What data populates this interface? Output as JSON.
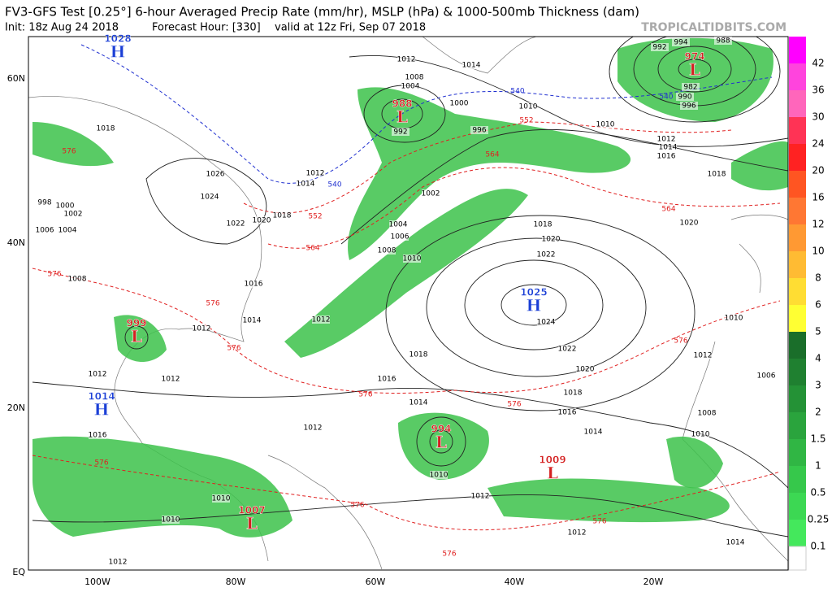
{
  "header": {
    "title": "FV3-GFS Test [0.25°] 6-hour Averaged Precip Rate (mm/hr), MSLP (hPa) & 1000-500mb Thickness (dam)",
    "init": "Init: 18z Aug 24 2018",
    "forecast_hour": "Forecast Hour: [330]",
    "valid": "valid at 12z Fri, Sep 07 2018",
    "site": "TROPICALTIDBITS.COM"
  },
  "map": {
    "lat_labels": [
      "60N",
      "40N",
      "20N",
      "EQ"
    ],
    "lon_labels": [
      "100W",
      "80W",
      "60W",
      "40W",
      "20W"
    ],
    "pressure_centers": [
      {
        "letter": "H",
        "value": 1028
      },
      {
        "letter": "L",
        "value": 988
      },
      {
        "letter": "L",
        "value": 974
      },
      {
        "letter": "H",
        "value": 1025
      },
      {
        "letter": "L",
        "value": 999
      },
      {
        "letter": "H",
        "value": 1014
      },
      {
        "letter": "L",
        "value": 994
      },
      {
        "letter": "L",
        "value": 1009
      },
      {
        "letter": "L",
        "value": 1007
      }
    ],
    "isobar_labels": [
      1012,
      1014,
      1008,
      1004,
      1000,
      996,
      992,
      1010,
      1010,
      1012,
      1014,
      1016,
      1018,
      1020,
      1018,
      1020,
      1022,
      1024,
      1022,
      1020,
      1018,
      1016,
      1014,
      1016,
      1014,
      1018,
      1012,
      1010,
      1008,
      1006,
      1004,
      1002,
      1026,
      1024,
      1022,
      1020,
      1018,
      1016,
      1014,
      1012,
      1012,
      1012,
      1010,
      1012,
      1012,
      1014,
      1012,
      1010,
      1010,
      1008,
      1006,
      1004,
      1002,
      1000,
      998,
      1018,
      1012,
      1014,
      1008,
      1010,
      1010,
      1012,
      1006,
      994,
      988,
      992,
      982,
      990,
      996,
      1012,
      1016
    ],
    "thickness_labels": [
      540,
      540,
      552,
      564,
      564,
      576,
      552,
      564,
      540,
      576,
      576,
      576,
      576,
      576,
      576,
      576,
      576,
      576,
      576
    ]
  },
  "colorbar": {
    "labels": [
      42,
      36,
      30,
      24,
      20,
      16,
      12,
      10,
      8,
      6,
      5,
      4,
      3,
      2,
      1.5,
      1,
      0.5,
      0.25,
      0.1
    ]
  }
}
